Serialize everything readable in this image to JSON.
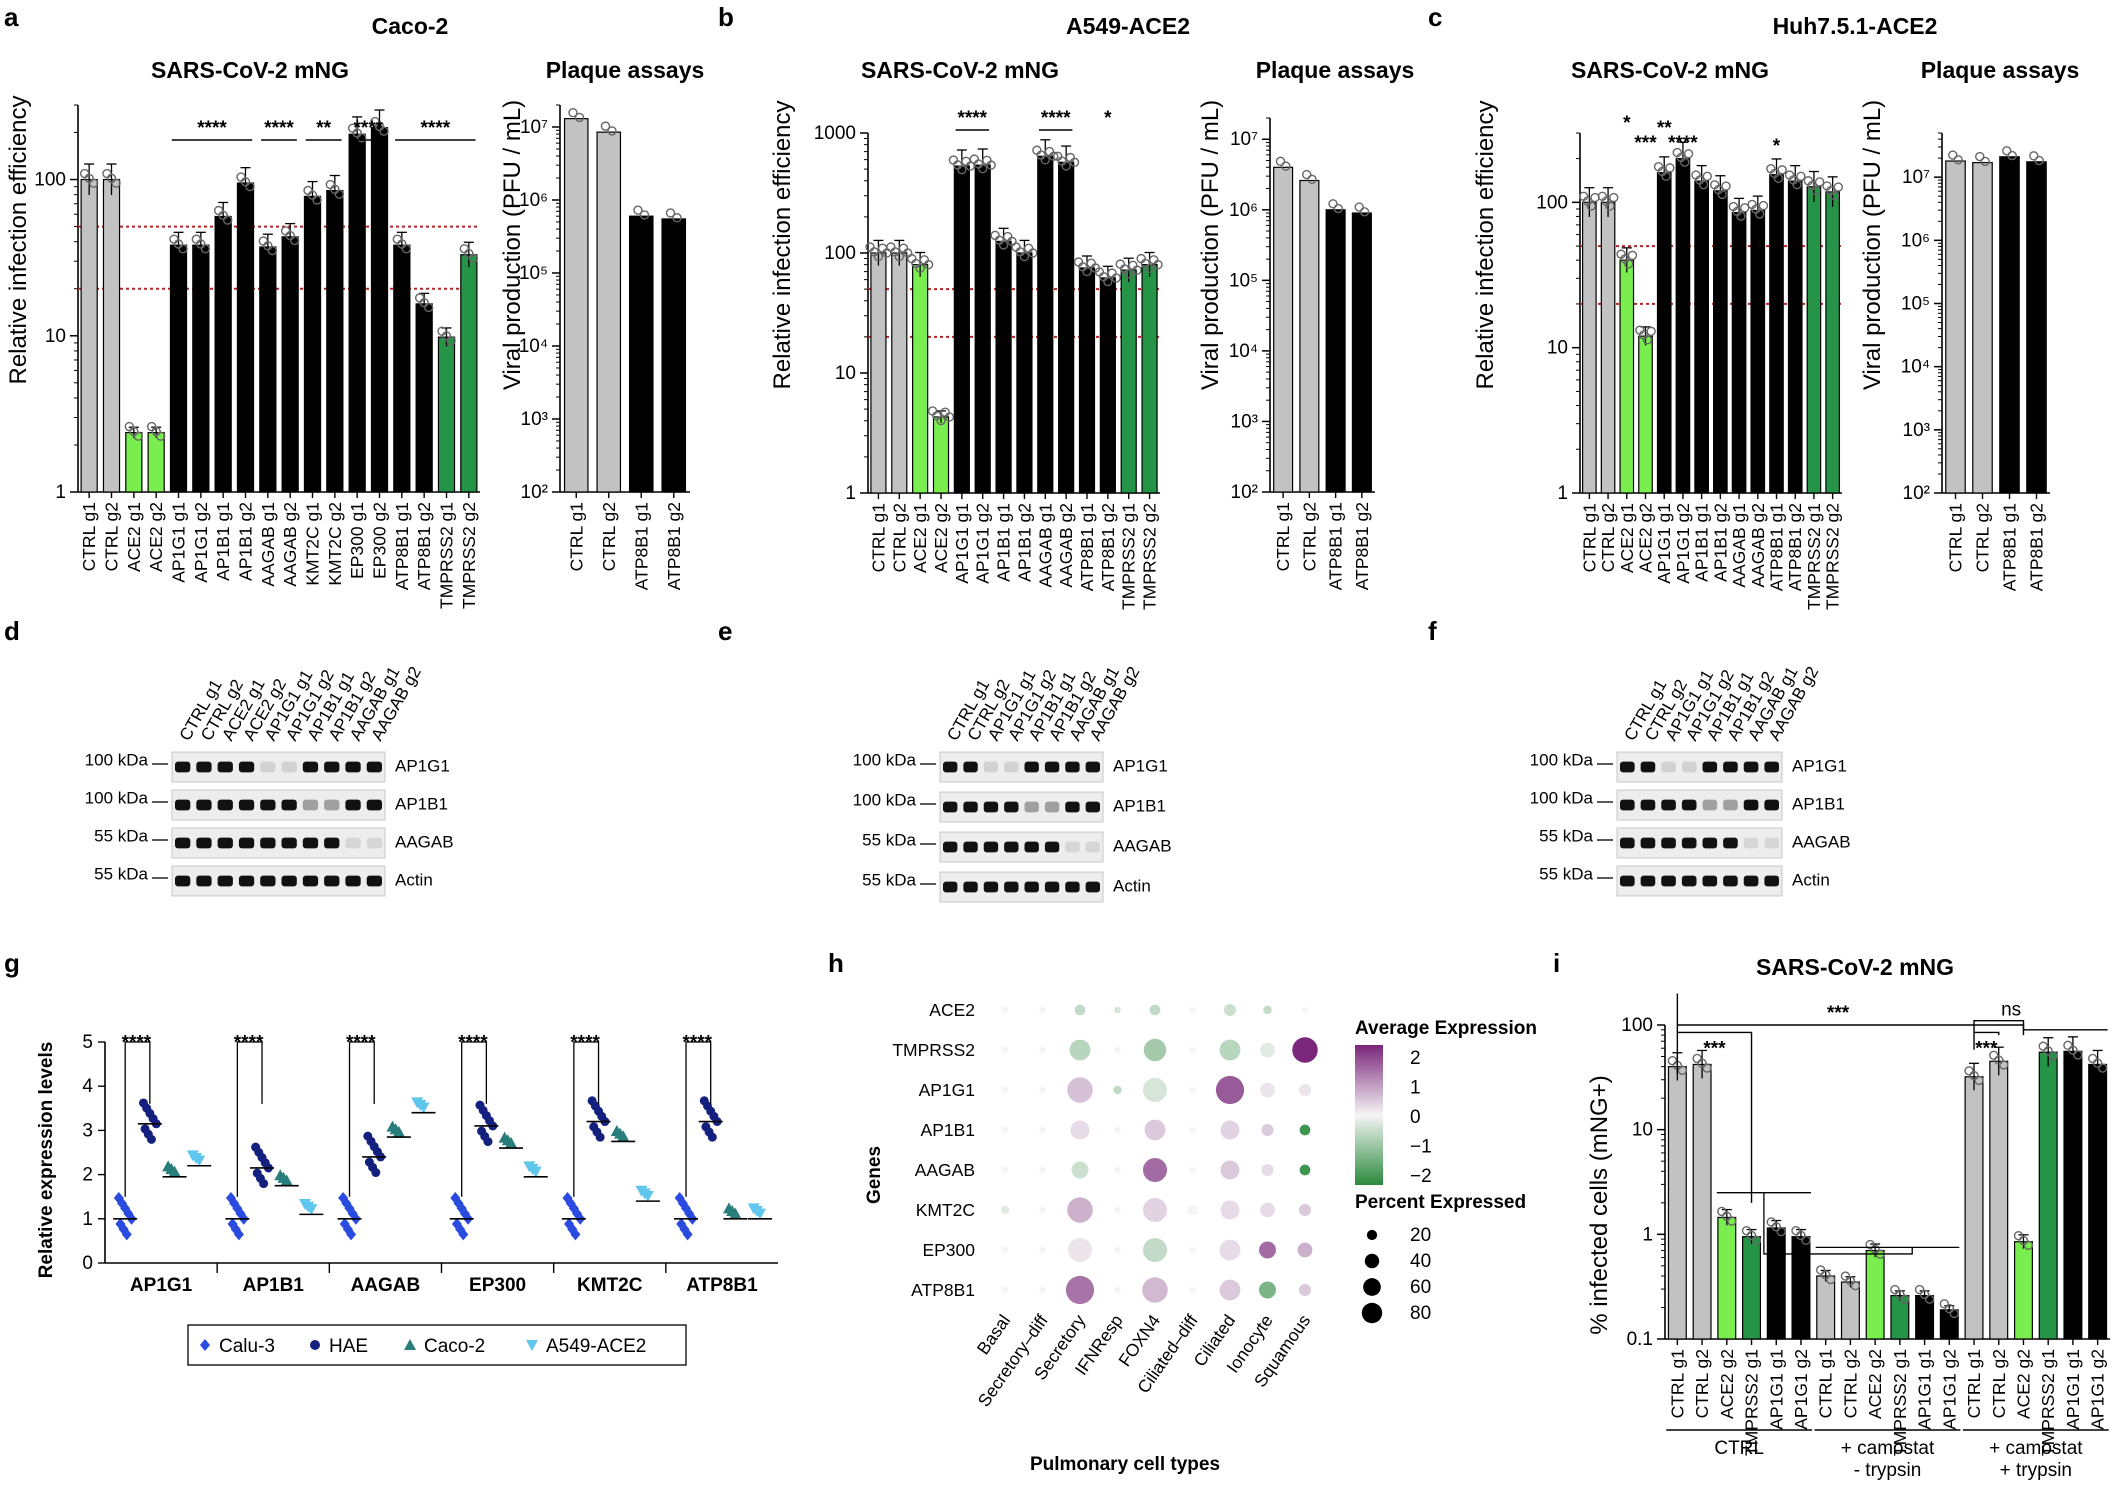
{
  "colors": {
    "ctrl": "#c2c2c2",
    "ace2": "#79ee4e",
    "tmprss": "#259447",
    "black": "#000000",
    "navy": "#14207e",
    "blue": "#2a4be0",
    "teal": "#277e7a",
    "light": "#5fc6ee",
    "red": "#b3262a",
    "pur": "#7a267a",
    "grn": "#2a8a3c"
  },
  "panels": {
    "a": "a",
    "b": "b",
    "c": "c",
    "d": "d",
    "e": "e",
    "f": "f",
    "g": "g",
    "h": "h",
    "i": "i"
  },
  "cells": {
    "a": "Caco-2",
    "b": "A549-ACE2",
    "c": "Huh7.5.1-ACE2"
  },
  "titles": {
    "mng": "SARS-CoV-2 mNG",
    "plaque": "Plaque assays"
  },
  "ylabels": {
    "rie": "Relative infection efficiency",
    "viral": "Viral production (PFU / mL)",
    "rel_expr": "Relative expression levels",
    "infected": "% infected cells (mNG+)",
    "genes": "Genes"
  },
  "chart_data": [
    {
      "id": "a_mng",
      "type": "bar",
      "title": "SARS-CoV-2 mNG",
      "ylabel": "Relative infection efficiency",
      "yscale": "log",
      "ylim": [
        1,
        300
      ],
      "ticks": [
        "1",
        "10",
        "100"
      ],
      "ref_lines": [
        50,
        20
      ],
      "categories": [
        "CTRL g1",
        "CTRL g2",
        "ACE2 g1",
        "ACE2 g2",
        "AP1G1 g1",
        "AP1G1 g2",
        "AP1B1 g1",
        "AP1B1 g2",
        "AAGAB g1",
        "AAGAB g2",
        "KMT2C g1",
        "KMT2C g2",
        "EP300 g1",
        "EP300 g2",
        "ATP8B1 g1",
        "ATP8B1 g2",
        "TMPRSS2 g1",
        "TMPRSS2 g2"
      ],
      "values": [
        100,
        100,
        2.4,
        2.4,
        38,
        38,
        58,
        95,
        37,
        43,
        78,
        85,
        195,
        215,
        38,
        16,
        9.8,
        33
      ],
      "color_groups": [
        "ctrl",
        "ctrl",
        "ace2",
        "ace2",
        "black",
        "black",
        "black",
        "black",
        "black",
        "black",
        "black",
        "black",
        "black",
        "black",
        "black",
        "black",
        "tmprss",
        "tmprss"
      ],
      "significance": [
        {
          "label": "****",
          "from": 4,
          "to": 7
        },
        {
          "label": "****",
          "from": 8,
          "to": 9
        },
        {
          "label": "**",
          "from": 10,
          "to": 11
        },
        {
          "label": "****",
          "from": 12,
          "to": 13
        },
        {
          "label": "****",
          "from": 14,
          "to": 17
        }
      ]
    },
    {
      "id": "a_plaque",
      "type": "bar",
      "title": "Plaque assays",
      "ylabel": "Viral production (PFU / mL)",
      "yscale": "log",
      "ylim": [
        100,
        20000000
      ],
      "ticks": [
        "10²",
        "10³",
        "10⁴",
        "10⁵",
        "10⁶",
        "10⁷"
      ],
      "categories": [
        "CTRL g1",
        "CTRL g2",
        "ATP8B1 g1",
        "ATP8B1 g2"
      ],
      "values": [
        13000000,
        8500000,
        600000,
        550000
      ],
      "color_groups": [
        "ctrl",
        "ctrl",
        "black",
        "black"
      ]
    },
    {
      "id": "b_mng",
      "type": "bar",
      "title": "SARS-CoV-2 mNG",
      "ylabel": "Relative infection efficiency",
      "yscale": "log",
      "ylim": [
        1,
        1000
      ],
      "ticks": [
        "1",
        "10",
        "100",
        "1000"
      ],
      "ref_lines": [
        50,
        20
      ],
      "categories": [
        "CTRL g1",
        "CTRL g2",
        "ACE2 g1",
        "ACE2 g2",
        "AP1G1 g1",
        "AP1G1 g2",
        "AP1B1 g1",
        "AP1B1 g2",
        "AAGAB g1",
        "AAGAB g2",
        "ATP8B1 g1",
        "ATP8B1 g2",
        "TMPRSS2 g1",
        "TMPRSS2 g2"
      ],
      "values": [
        100,
        100,
        80,
        4.3,
        530,
        540,
        125,
        100,
        640,
        570,
        75,
        62,
        72,
        80
      ],
      "color_groups": [
        "ctrl",
        "ctrl",
        "ace2",
        "ace2",
        "black",
        "black",
        "black",
        "black",
        "black",
        "black",
        "black",
        "black",
        "tmprss",
        "tmprss"
      ],
      "significance": [
        {
          "label": "****",
          "from": 4,
          "to": 5
        },
        {
          "label": "****",
          "from": 8,
          "to": 9
        },
        {
          "label": "*",
          "from": 11,
          "to": 11
        }
      ]
    },
    {
      "id": "b_plaque",
      "type": "bar",
      "title": "Plaque assays",
      "ylabel": "Viral production (PFU / mL)",
      "yscale": "log",
      "ylim": [
        100,
        20000000
      ],
      "ticks": [
        "10²",
        "10³",
        "10⁴",
        "10⁵",
        "10⁶",
        "10⁷"
      ],
      "categories": [
        "CTRL g1",
        "CTRL g2",
        "ATP8B1 g1",
        "ATP8B1 g2"
      ],
      "values": [
        4000000,
        2600000,
        1000000,
        900000
      ],
      "color_groups": [
        "ctrl",
        "ctrl",
        "black",
        "black"
      ]
    },
    {
      "id": "c_mng",
      "type": "bar",
      "title": "SARS-CoV-2 mNG",
      "ylabel": "Relative infection efficiency",
      "yscale": "log",
      "ylim": [
        1,
        300
      ],
      "ticks": [
        "1",
        "10",
        "100"
      ],
      "ref_lines": [
        50,
        20
      ],
      "categories": [
        "CTRL g1",
        "CTRL g2",
        "ACE2 g1",
        "ACE2 g2",
        "AP1G1 g1",
        "AP1G1 g2",
        "AP1B1 g1",
        "AP1B1 g2",
        "AAGAB g1",
        "AAGAB g2",
        "ATP8B1 g1",
        "ATP8B1 g2",
        "TMPRSS2 g1",
        "TMPRSS2 g2"
      ],
      "values": [
        100,
        100,
        40,
        12,
        160,
        200,
        140,
        120,
        85,
        88,
        155,
        140,
        128,
        118
      ],
      "color_groups": [
        "ctrl",
        "ctrl",
        "ace2",
        "ace2",
        "black",
        "black",
        "black",
        "black",
        "black",
        "black",
        "black",
        "black",
        "tmprss",
        "tmprss"
      ],
      "significance": [
        {
          "label": "*",
          "from": 2,
          "to": 2
        },
        {
          "label": "***",
          "from": 3,
          "to": 3
        },
        {
          "label": "**",
          "from": 4,
          "to": 4
        },
        {
          "label": "****",
          "from": 5,
          "to": 5
        },
        {
          "label": "*",
          "from": 10,
          "to": 10
        }
      ]
    },
    {
      "id": "c_plaque",
      "type": "bar",
      "title": "Plaque assays",
      "ylabel": "Viral production (PFU / mL)",
      "yscale": "log",
      "ylim": [
        100,
        50000000
      ],
      "ticks": [
        "10²",
        "10³",
        "10⁴",
        "10⁵",
        "10⁶",
        "10⁷"
      ],
      "categories": [
        "CTRL g1",
        "CTRL g2",
        "ATP8B1 g1",
        "ATP8B1 g2"
      ],
      "values": [
        18000000,
        17000000,
        21000000,
        17500000
      ],
      "color_groups": [
        "ctrl",
        "ctrl",
        "black",
        "black"
      ]
    },
    {
      "id": "g_expr",
      "type": "scatter",
      "ylabel": "Relative expression levels",
      "ylim": [
        0,
        5
      ],
      "ticks": [
        "0",
        "1",
        "2",
        "3",
        "4",
        "5"
      ],
      "groups": [
        "AP1G1",
        "AP1B1",
        "AAGAB",
        "EP300",
        "KMT2C",
        "ATP8B1"
      ],
      "series": [
        {
          "name": "Calu-3",
          "marker": "diamond",
          "color": "blue",
          "values": [
            1.0,
            1.0,
            1.0,
            1.0,
            1.0,
            1.0
          ]
        },
        {
          "name": "HAE",
          "marker": "circle",
          "color": "navy",
          "values": [
            3.15,
            2.15,
            2.4,
            3.1,
            3.2,
            3.2
          ]
        },
        {
          "name": "Caco-2",
          "marker": "triangle",
          "color": "teal",
          "values": [
            1.95,
            1.75,
            2.85,
            2.6,
            2.75,
            1.0
          ]
        },
        {
          "name": "A549-ACE2",
          "marker": "triangle-down",
          "color": "light",
          "values": [
            2.2,
            1.1,
            3.4,
            1.95,
            1.4,
            1.0
          ]
        }
      ],
      "significance": "****"
    },
    {
      "id": "h_dot",
      "type": "heatmap",
      "xlabel": "Pulmonary cell types",
      "ylabel": "Genes",
      "genes": [
        "ACE2",
        "TMPRSS2",
        "AP1G1",
        "AP1B1",
        "AAGAB",
        "KMT2C",
        "EP300",
        "ATP8B1"
      ],
      "cell_types": [
        "Basal",
        "Secretory–diff",
        "Secretory",
        "IFNResp",
        "FOXN4",
        "Ciliated–diff",
        "Ciliated",
        "Ionocyte",
        "Squamous"
      ],
      "avg_expression": [
        [
          0,
          0,
          -0.5,
          -0.3,
          -0.5,
          0,
          -0.4,
          -0.5,
          0
        ],
        [
          0,
          0,
          -0.6,
          0,
          -0.8,
          0,
          -0.6,
          -0.2,
          2.4
        ],
        [
          0,
          0,
          0.6,
          -0.5,
          -0.3,
          0,
          1.8,
          0.2,
          0.2
        ],
        [
          0,
          0,
          0.3,
          0,
          0.5,
          0,
          0.4,
          0.5,
          -1.8
        ],
        [
          0,
          0,
          -0.4,
          0,
          1.6,
          0,
          0.5,
          0.3,
          -1.8
        ],
        [
          -0.2,
          0,
          0.8,
          0,
          0.4,
          0,
          0.3,
          0.3,
          0.5
        ],
        [
          0,
          0,
          0.2,
          0,
          -0.5,
          0,
          0.3,
          1.6,
          0.8
        ],
        [
          0,
          0,
          1.5,
          0,
          0.7,
          0,
          0.5,
          -1.2,
          0.5
        ]
      ],
      "pct_expressed": [
        [
          3,
          3,
          8,
          3,
          8,
          3,
          10,
          5,
          3
        ],
        [
          3,
          3,
          30,
          3,
          35,
          3,
          30,
          15,
          45
        ],
        [
          3,
          3,
          45,
          5,
          40,
          3,
          55,
          15,
          10
        ],
        [
          3,
          3,
          25,
          3,
          30,
          3,
          25,
          10,
          8
        ],
        [
          3,
          3,
          20,
          3,
          40,
          3,
          25,
          10,
          8
        ],
        [
          5,
          3,
          45,
          3,
          40,
          8,
          25,
          15,
          10
        ],
        [
          3,
          3,
          40,
          3,
          40,
          3,
          30,
          20,
          15
        ],
        [
          3,
          3,
          55,
          3,
          45,
          3,
          30,
          20,
          10
        ]
      ],
      "legend": {
        "avg_title": "Average Expression",
        "avg_ticks": [
          "2",
          "1",
          "0",
          "−1",
          "−2"
        ],
        "pct_title": "Percent Expressed",
        "pct_ticks": [
          "20",
          "40",
          "60",
          "80"
        ]
      }
    },
    {
      "id": "i_mng",
      "type": "bar",
      "title": "SARS-CoV-2 mNG",
      "ylabel": "% infected cells (mNG+)",
      "yscale": "log",
      "ylim": [
        0.1,
        100
      ],
      "ticks": [
        "0.1",
        "1",
        "10",
        "100"
      ],
      "categories": [
        "CTRL g1",
        "CTRL g2",
        "ACE2 g2",
        "TMPRSS2 g1",
        "AP1G1 g1",
        "AP1G1 g2",
        "CTRL g1",
        "CTRL g2",
        "ACE2 g2",
        "TMPRSS2 g1",
        "AP1G1 g1",
        "AP1G1 g2",
        "CTRL g1",
        "CTRL g2",
        "ACE2 g2",
        "TMPRSS2 g1",
        "AP1G1 g1",
        "AP1G1 g2"
      ],
      "values": [
        40,
        42,
        1.45,
        0.95,
        1.15,
        0.95,
        0.4,
        0.35,
        0.7,
        0.26,
        0.26,
        0.19,
        32,
        45,
        0.85,
        55,
        56,
        42
      ],
      "color_groups": [
        "ctrl",
        "ctrl",
        "ace2",
        "tmprss",
        "black",
        "black",
        "ctrl",
        "ctrl",
        "ace2",
        "tmprss",
        "black",
        "black",
        "ctrl",
        "ctrl",
        "ace2",
        "tmprss",
        "black",
        "black"
      ],
      "conditions": [
        "CTRL",
        "+ camostat\n- trypsin",
        "+ camostat\n+ trypsin"
      ],
      "significance": [
        "***",
        "***",
        "***",
        "ns"
      ]
    }
  ],
  "blots": {
    "d": {
      "lanes": [
        "CTRL g1",
        "CTRL g2",
        "ACE2 g1",
        "ACE2 g2",
        "AP1G1 g1",
        "AP1G1 g2",
        "AP1B1 g1",
        "AP1B1 g2",
        "AAGAB g1",
        "AAGAB g2"
      ],
      "bands": [
        "AP1G1",
        "AP1B1",
        "AAGAB",
        "Actin"
      ],
      "markers": [
        "100 kDa",
        "100 kDa",
        "55 kDa",
        "55 kDa"
      ]
    },
    "e": {
      "lanes": [
        "CTRL g1",
        "CTRL g2",
        "AP1G1 g1",
        "AP1G1 g2",
        "AP1B1 g1",
        "AP1B1 g2",
        "AAGAB g1",
        "AAGAB g2"
      ],
      "bands": [
        "AP1G1",
        "AP1B1",
        "AAGAB",
        "Actin"
      ],
      "markers": [
        "100 kDa",
        "100 kDa",
        "55 kDa",
        "55 kDa"
      ]
    },
    "f": {
      "lanes": [
        "CTRL g1",
        "CTRL g2",
        "AP1G1 g1",
        "AP1G1 g2",
        "AP1B1 g1",
        "AP1B1 g2",
        "AAGAB g1",
        "AAGAB g2"
      ],
      "bands": [
        "AP1G1",
        "AP1B1",
        "AAGAB",
        "Actin"
      ],
      "markers": [
        "100 kDa",
        "100 kDa",
        "55 kDa",
        "55 kDa"
      ]
    }
  },
  "legend_g": [
    "Calu-3",
    "HAE",
    "Caco-2",
    "A549-ACE2"
  ],
  "xlabels": {
    "pulmonary": "Pulmonary cell types"
  }
}
